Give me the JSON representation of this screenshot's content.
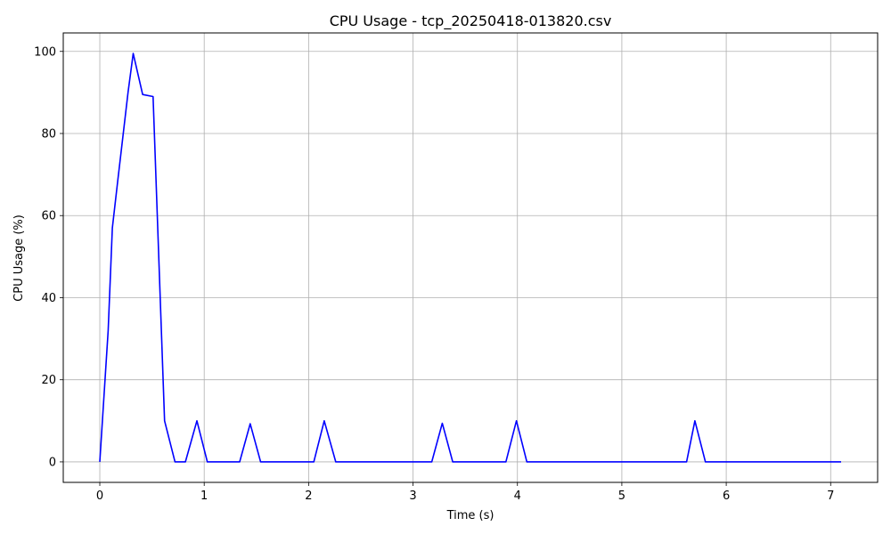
{
  "chart_data": {
    "type": "line",
    "title": "CPU Usage - tcp_20250418-013820.csv",
    "xlabel": "Time (s)",
    "ylabel": "CPU Usage (%)",
    "xlim": [
      -0.35,
      7.45
    ],
    "ylim": [
      -5,
      104.5
    ],
    "x_ticks": [
      0,
      1,
      2,
      3,
      4,
      5,
      6,
      7
    ],
    "y_ticks": [
      0,
      20,
      40,
      60,
      80,
      100
    ],
    "grid": true,
    "series": [
      {
        "color": "#0000ff",
        "x": [
          0.0,
          0.08,
          0.12,
          0.17,
          0.22,
          0.27,
          0.32,
          0.41,
          0.51,
          0.62,
          0.72,
          0.82,
          0.93,
          1.03,
          1.13,
          1.23,
          1.34,
          1.44,
          1.54,
          1.64,
          1.74,
          1.84,
          1.95,
          2.05,
          2.15,
          2.26,
          2.36,
          2.46,
          2.56,
          2.67,
          2.77,
          2.87,
          2.97,
          3.07,
          3.18,
          3.28,
          3.38,
          3.48,
          3.58,
          3.69,
          3.79,
          3.89,
          3.99,
          4.09,
          4.19,
          4.3,
          4.4,
          4.5,
          4.6,
          4.71,
          4.81,
          4.91,
          5.01,
          5.11,
          5.22,
          5.32,
          5.42,
          5.52,
          5.62,
          5.7,
          5.8,
          5.9,
          6.0,
          6.1,
          6.2,
          6.3,
          6.4,
          6.5,
          6.6,
          6.7,
          6.8,
          6.9,
          7.0,
          7.1
        ],
        "y": [
          0,
          32,
          57,
          68,
          79,
          90,
          99.5,
          89.5,
          89,
          10,
          0,
          0,
          10,
          0,
          0,
          0,
          0,
          9.3,
          0,
          0,
          0,
          0,
          0,
          0,
          10,
          0,
          0,
          0,
          0,
          0,
          0,
          0,
          0,
          0,
          0,
          9.4,
          0,
          0,
          0,
          0,
          0,
          0,
          10,
          0,
          0,
          0,
          0,
          0,
          0,
          0,
          0,
          0,
          0,
          0,
          0,
          0,
          0,
          0,
          0,
          10,
          0,
          0,
          0,
          0,
          0,
          0,
          0,
          0,
          0,
          0,
          0,
          0,
          0,
          0
        ]
      }
    ]
  }
}
